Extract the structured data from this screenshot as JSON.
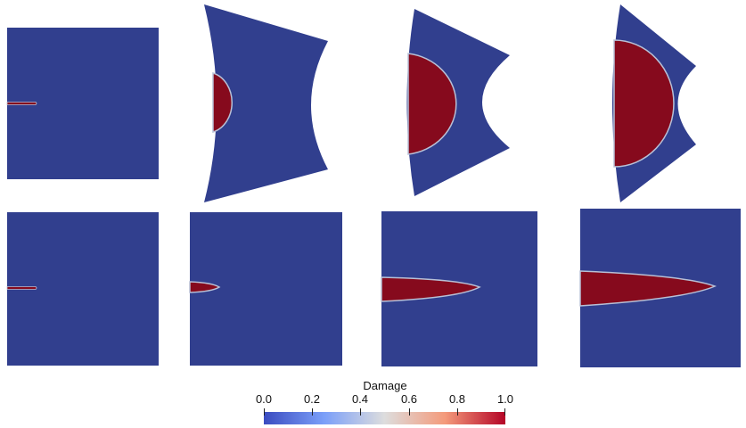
{
  "colors": {
    "intact": "#313f8e",
    "damaged": "#860a1d",
    "transition": "#b8c0d6",
    "background": "#ffffff"
  },
  "colorbar": {
    "title": "Damage",
    "ticks": [
      "0.0",
      "0.2",
      "0.4",
      "0.6",
      "0.8",
      "1.0"
    ],
    "range": [
      0.0,
      1.0
    ],
    "colormap": "cool-to-warm"
  },
  "rows": [
    {
      "panels": [
        {
          "shape": "square",
          "damage": "initial-notch"
        },
        {
          "shape": "deformed",
          "damage": "half-disk-small"
        },
        {
          "shape": "deformed",
          "damage": "half-disk-large"
        },
        {
          "shape": "deformed",
          "damage": "half-disk-large"
        }
      ]
    },
    {
      "panels": [
        {
          "shape": "square",
          "damage": "initial-notch"
        },
        {
          "shape": "square",
          "damage": "short-crack"
        },
        {
          "shape": "square",
          "damage": "long-crack"
        },
        {
          "shape": "square",
          "damage": "longer-crack"
        }
      ]
    }
  ]
}
